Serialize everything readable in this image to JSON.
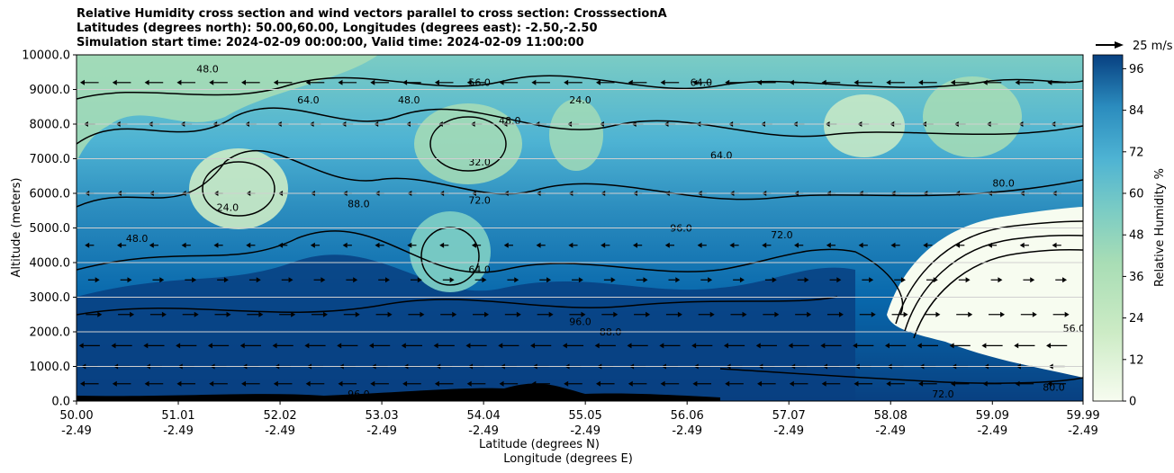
{
  "chart_data": {
    "type": "heatmap",
    "title_lines": [
      "Relative Humidity cross section and wind vectors parallel to cross section: CrosssectionA",
      "Latitudes (degrees north): 50.00,60.00, Longitudes (degrees east): -2.50,-2.50",
      "Simulation start time: 2024-02-09 00:00:00, Valid time: 2024-02-09 11:00:00"
    ],
    "xlabel_line1": "Latitude (degrees N)",
    "xlabel_line2": "Longitude (degrees E)",
    "ylabel": "Altitude (meters)",
    "colorbar_label": "Relative Humidity %",
    "quiver_key_label": "25 m/s",
    "x_ticks": [
      {
        "lat": "50.00",
        "lon": "-2.49"
      },
      {
        "lat": "51.01",
        "lon": "-2.49"
      },
      {
        "lat": "52.02",
        "lon": "-2.49"
      },
      {
        "lat": "53.03",
        "lon": "-2.49"
      },
      {
        "lat": "54.04",
        "lon": "-2.49"
      },
      {
        "lat": "55.05",
        "lon": "-2.49"
      },
      {
        "lat": "56.06",
        "lon": "-2.49"
      },
      {
        "lat": "57.07",
        "lon": "-2.49"
      },
      {
        "lat": "58.08",
        "lon": "-2.49"
      },
      {
        "lat": "59.09",
        "lon": "-2.49"
      },
      {
        "lat": "59.99",
        "lon": "-2.49"
      }
    ],
    "xlim": [
      50.0,
      59.99
    ],
    "y_ticks": [
      "0.0",
      "1000.0",
      "2000.0",
      "3000.0",
      "4000.0",
      "5000.0",
      "6000.0",
      "7000.0",
      "8000.0",
      "9000.0",
      "10000.0"
    ],
    "ylim": [
      0,
      10000
    ],
    "colorbar_ticks": [
      "0",
      "12",
      "24",
      "36",
      "48",
      "60",
      "72",
      "84",
      "96"
    ],
    "colorbar_range": [
      0,
      100
    ],
    "grid": "horizontal",
    "colors": {
      "low": "#f7fcf0",
      "mid": "#7bccc4",
      "high": "#084081"
    },
    "contour_labels": [
      {
        "text": "48.0",
        "lat": 51.3,
        "alt": 9500
      },
      {
        "text": "56.0",
        "lat": 54.0,
        "alt": 9100
      },
      {
        "text": "64.0",
        "lat": 52.3,
        "alt": 8600
      },
      {
        "text": "24.0",
        "lat": 55.0,
        "alt": 8600
      },
      {
        "text": "64.0",
        "lat": 56.2,
        "alt": 9100
      },
      {
        "text": "48.0",
        "lat": 53.3,
        "alt": 8600
      },
      {
        "text": "48.0",
        "lat": 54.3,
        "alt": 8000
      },
      {
        "text": "32.0",
        "lat": 54.0,
        "alt": 6800
      },
      {
        "text": "64.0",
        "lat": 56.4,
        "alt": 7000
      },
      {
        "text": "24.0",
        "lat": 51.5,
        "alt": 5500
      },
      {
        "text": "88.0",
        "lat": 52.8,
        "alt": 5600
      },
      {
        "text": "72.0",
        "lat": 54.0,
        "alt": 5700
      },
      {
        "text": "80.0",
        "lat": 59.2,
        "alt": 6200
      },
      {
        "text": "96.0",
        "lat": 56.0,
        "alt": 4900
      },
      {
        "text": "72.0",
        "lat": 57.0,
        "alt": 4700
      },
      {
        "text": "64.0",
        "lat": 54.0,
        "alt": 3700
      },
      {
        "text": "48.0",
        "lat": 50.6,
        "alt": 4600
      },
      {
        "text": "96.0",
        "lat": 55.0,
        "alt": 2200
      },
      {
        "text": "88.0",
        "lat": 55.3,
        "alt": 1900
      },
      {
        "text": "96.0",
        "lat": 52.8,
        "alt": 100
      },
      {
        "text": "72.0",
        "lat": 58.6,
        "alt": 100
      },
      {
        "text": "80.0",
        "lat": 59.7,
        "alt": 300
      },
      {
        "text": "56.0",
        "lat": 59.9,
        "alt": 2000
      }
    ],
    "wind_rows": [
      {
        "alt": 9200,
        "u": -12
      },
      {
        "alt": 8000,
        "u": -6
      },
      {
        "alt": 6000,
        "u": -4
      },
      {
        "alt": 4500,
        "u": -4
      },
      {
        "alt": 3500,
        "u": 6
      },
      {
        "alt": 2500,
        "u": 10
      },
      {
        "alt": 1600,
        "u": -14
      },
      {
        "alt": 1000,
        "u": -10
      },
      {
        "alt": 500,
        "u": -12
      }
    ]
  }
}
